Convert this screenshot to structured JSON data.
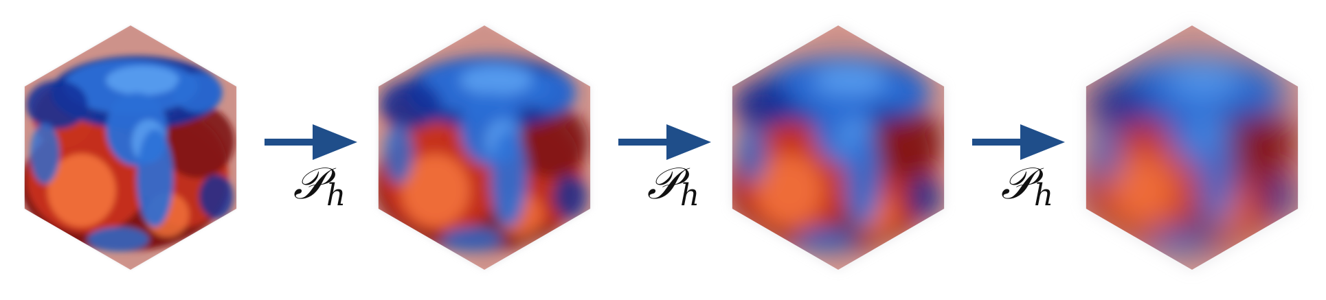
{
  "figure": {
    "stages": [
      {
        "name": "stage-1",
        "blur": 0.8
      },
      {
        "name": "stage-2",
        "blur": 2.6
      },
      {
        "name": "stage-3",
        "blur": 4.6
      },
      {
        "name": "stage-4",
        "blur": 6.6
      }
    ],
    "operator": {
      "symbol": "𝒫",
      "subscript": "h"
    },
    "colors": {
      "arrow": "#1f4e8a",
      "red_dark": "#7a1212",
      "red": "#c8321c",
      "orange": "#f0703a",
      "blue_dark": "#12309a",
      "blue": "#2b6fd6",
      "blue_light": "#5aa0f0",
      "label": "#111111"
    }
  }
}
